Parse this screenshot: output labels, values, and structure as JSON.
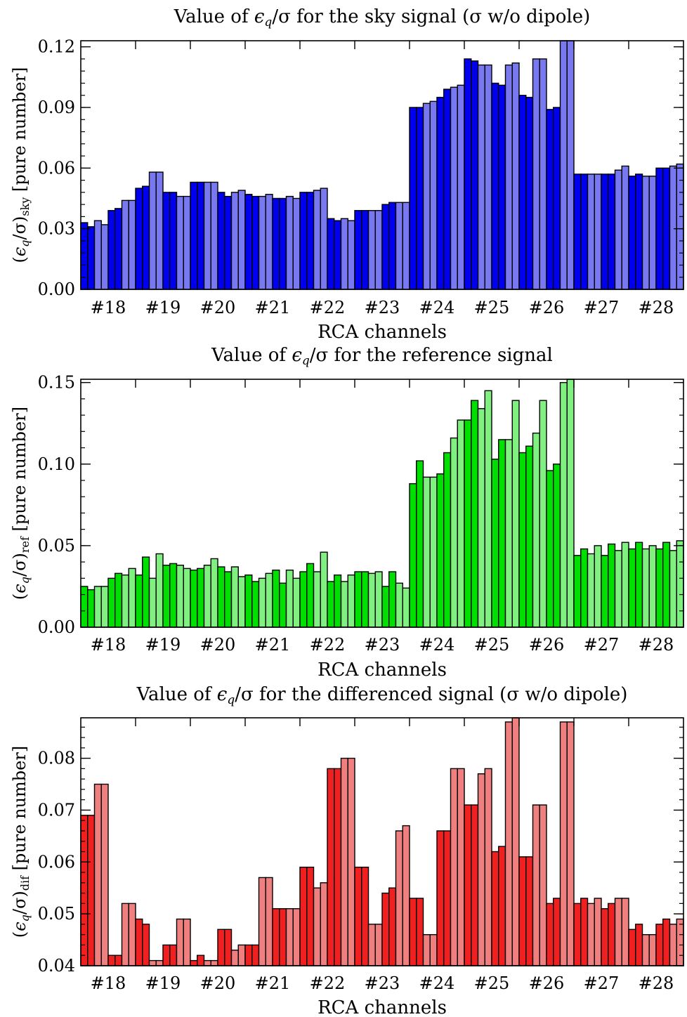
{
  "charts": [
    {
      "key": "sky",
      "type": "bar",
      "title": "Value of εq/σ for the sky signal (σ w/o dipole)",
      "title_parts": [
        "Value of ",
        "ϵ",
        "q",
        "/σ for the sky signal (σ w/o dipole)"
      ],
      "ylabel_parts": [
        "(",
        "ϵ",
        "q",
        "/σ)",
        "sky",
        " [pure number]"
      ],
      "xlabel": "RCA channels",
      "categories": [
        "#18",
        "#19",
        "#20",
        "#21",
        "#22",
        "#23",
        "#24",
        "#25",
        "#26",
        "#27",
        "#28"
      ],
      "ylim": [
        0,
        0.123
      ],
      "yticks": [
        0.0,
        0.03,
        0.06,
        0.09,
        0.12
      ],
      "ytick_labels": [
        "0.00",
        "0.03",
        "0.06",
        "0.09",
        "0.12"
      ],
      "colors": [
        "#0000ee",
        "#7878f0"
      ],
      "values": [
        [
          0.033,
          0.031,
          0.034,
          0.032,
          0.039,
          0.04,
          0.044,
          0.044
        ],
        [
          0.05,
          0.051,
          0.058,
          0.058,
          0.048,
          0.048,
          0.046,
          0.046
        ],
        [
          0.053,
          0.053,
          0.053,
          0.053,
          0.048,
          0.046,
          0.048,
          0.049
        ],
        [
          0.047,
          0.046,
          0.046,
          0.047,
          0.045,
          0.045,
          0.046,
          0.045
        ],
        [
          0.048,
          0.048,
          0.049,
          0.05,
          0.035,
          0.034,
          0.035,
          0.034
        ],
        [
          0.039,
          0.039,
          0.039,
          0.039,
          0.042,
          0.043,
          0.043,
          0.043
        ],
        [
          0.09,
          0.09,
          0.092,
          0.093,
          0.095,
          0.099,
          0.1,
          0.101
        ],
        [
          0.114,
          0.113,
          0.111,
          0.111,
          0.102,
          0.101,
          0.111,
          0.112
        ],
        [
          0.096,
          0.095,
          0.114,
          0.114,
          0.089,
          0.09,
          0.123,
          0.123
        ],
        [
          0.057,
          0.057,
          0.057,
          0.057,
          0.057,
          0.057,
          0.059,
          0.061
        ],
        [
          0.056,
          0.057,
          0.056,
          0.056,
          0.06,
          0.06,
          0.061,
          0.062
        ]
      ]
    },
    {
      "key": "ref",
      "type": "bar",
      "title": "Value of εq/σ for the reference signal",
      "title_parts": [
        "Value of ",
        "ϵ",
        "q",
        "/σ for the reference signal"
      ],
      "ylabel_parts": [
        "(",
        "ϵ",
        "q",
        "/σ)",
        "ref",
        " [pure number]"
      ],
      "xlabel": "RCA channels",
      "categories": [
        "#18",
        "#19",
        "#20",
        "#21",
        "#22",
        "#23",
        "#24",
        "#25",
        "#26",
        "#27",
        "#28"
      ],
      "ylim": [
        0,
        0.152
      ],
      "yticks": [
        0.0,
        0.05,
        0.1,
        0.15
      ],
      "ytick_labels": [
        "0.00",
        "0.05",
        "0.10",
        "0.15"
      ],
      "colors": [
        "#00e000",
        "#80f080"
      ],
      "values": [
        [
          0.025,
          0.023,
          0.025,
          0.025,
          0.03,
          0.033,
          0.032,
          0.036
        ],
        [
          0.032,
          0.043,
          0.03,
          0.045,
          0.038,
          0.039,
          0.038,
          0.036
        ],
        [
          0.035,
          0.036,
          0.038,
          0.042,
          0.037,
          0.034,
          0.037,
          0.031
        ],
        [
          0.032,
          0.028,
          0.03,
          0.033,
          0.035,
          0.027,
          0.035,
          0.03
        ],
        [
          0.034,
          0.039,
          0.034,
          0.046,
          0.028,
          0.032,
          0.028,
          0.032
        ],
        [
          0.034,
          0.034,
          0.033,
          0.034,
          0.025,
          0.034,
          0.027,
          0.024
        ],
        [
          0.088,
          0.102,
          0.092,
          0.092,
          0.094,
          0.107,
          0.116,
          0.127
        ],
        [
          0.127,
          0.139,
          0.134,
          0.145,
          0.103,
          0.115,
          0.115,
          0.139
        ],
        [
          0.107,
          0.111,
          0.119,
          0.139,
          0.096,
          0.1,
          0.15,
          0.152
        ],
        [
          0.044,
          0.048,
          0.045,
          0.05,
          0.044,
          0.051,
          0.047,
          0.052
        ],
        [
          0.048,
          0.052,
          0.048,
          0.05,
          0.048,
          0.052,
          0.047,
          0.053
        ]
      ]
    },
    {
      "key": "dif",
      "type": "bar",
      "title": "Value of εq/σ for the differenced signal (σ w/o dipole)",
      "title_parts": [
        "Value of ",
        "ϵ",
        "q",
        "/σ for the differenced signal (σ w/o dipole)"
      ],
      "ylabel_parts": [
        "(",
        "ϵ",
        "q",
        "/σ)",
        "dif",
        " [pure number]"
      ],
      "xlabel": "RCA channels",
      "categories": [
        "#18",
        "#19",
        "#20",
        "#21",
        "#22",
        "#23",
        "#24",
        "#25",
        "#26",
        "#27",
        "#28"
      ],
      "ylim": [
        0.04,
        0.0878
      ],
      "yticks": [
        0.04,
        0.05,
        0.06,
        0.07,
        0.08
      ],
      "ytick_labels": [
        "0.04",
        "0.05",
        "0.06",
        "0.07",
        "0.08"
      ],
      "colors": [
        "#f02020",
        "#f08080"
      ],
      "values": [
        [
          0.069,
          0.069,
          0.075,
          0.075,
          0.042,
          0.042,
          0.052,
          0.052
        ],
        [
          0.049,
          0.048,
          0.041,
          0.041,
          0.044,
          0.044,
          0.049,
          0.049
        ],
        [
          0.041,
          0.042,
          0.041,
          0.041,
          0.047,
          0.047,
          0.043,
          0.044
        ],
        [
          0.044,
          0.044,
          0.057,
          0.057,
          0.051,
          0.051,
          0.051,
          0.051
        ],
        [
          0.059,
          0.059,
          0.055,
          0.056,
          0.078,
          0.078,
          0.08,
          0.08
        ],
        [
          0.059,
          0.059,
          0.048,
          0.048,
          0.054,
          0.055,
          0.066,
          0.067
        ],
        [
          0.053,
          0.053,
          0.046,
          0.046,
          0.066,
          0.066,
          0.078,
          0.078
        ],
        [
          0.071,
          0.071,
          0.077,
          0.078,
          0.062,
          0.063,
          0.087,
          0.088
        ],
        [
          0.061,
          0.061,
          0.071,
          0.071,
          0.052,
          0.053,
          0.087,
          0.087
        ],
        [
          0.052,
          0.053,
          0.052,
          0.053,
          0.051,
          0.052,
          0.053,
          0.053
        ],
        [
          0.047,
          0.048,
          0.046,
          0.046,
          0.048,
          0.049,
          0.048,
          0.049
        ]
      ]
    }
  ]
}
